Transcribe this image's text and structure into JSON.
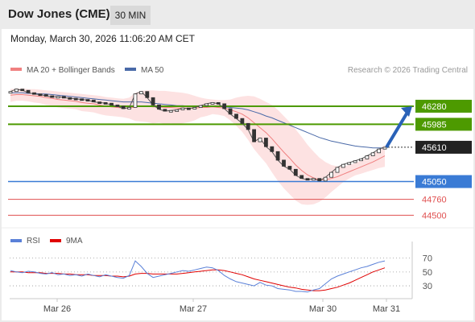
{
  "header": {
    "title": "Dow Jones (CME)",
    "timeframe": "30 MIN"
  },
  "timestamp": "Monday, March 30, 2026 11:06:20 AM CET",
  "legend": {
    "ma20_bb": "MA 20 + Bollinger Bands",
    "ma50": "MA 50",
    "credit": "Research © 2026 Trading Central"
  },
  "colors": {
    "resistance": "#4d9a00",
    "support": "#3a7bd5",
    "extra_support": "#e05050",
    "last_price": "#222222",
    "target_arrow": "#2a62b8",
    "ma20_bb": "#f08080",
    "bb_fill": "#fde2e2",
    "ma50": "#4a6aa8",
    "rsi": "#5a80d8",
    "rsi_ma": "#e00000"
  },
  "chart_data": [
    {
      "type": "line",
      "name": "price",
      "x": [
        "Mar 26",
        "Mar 27",
        "Mar 30",
        "Mar 31"
      ],
      "ylim": [
        44400,
        46700
      ],
      "levels": [
        {
          "value": 46280,
          "label": "46280",
          "kind": "resistance"
        },
        {
          "value": 45985,
          "label": "45985",
          "kind": "resistance"
        },
        {
          "value": 45610,
          "label": "45610",
          "kind": "last"
        },
        {
          "value": 45050,
          "label": "45050",
          "kind": "support"
        },
        {
          "value": 44760,
          "label": "44760",
          "kind": "extra_support"
        },
        {
          "value": 44500,
          "label": "44500",
          "kind": "extra_support"
        }
      ],
      "close_series": [
        46520,
        46560,
        46540,
        46500,
        46480,
        46470,
        46450,
        46430,
        46440,
        46420,
        46410,
        46400,
        46390,
        46380,
        46350,
        46340,
        46330,
        46300,
        46280,
        46240,
        46260,
        46480,
        46520,
        46420,
        46300,
        46230,
        46200,
        46210,
        46220,
        46250,
        46240,
        46260,
        46290,
        46320,
        46340,
        46320,
        46240,
        46150,
        46080,
        46000,
        45900,
        45700,
        45760,
        45620,
        45540,
        45400,
        45300,
        45250,
        45150,
        45100,
        45080,
        45100,
        45060,
        45120,
        45200,
        45280,
        45330,
        45360,
        45390,
        45420,
        45470,
        45520,
        45580,
        45610
      ],
      "ma20_series": [
        46460,
        46470,
        46470,
        46460,
        46450,
        46440,
        46420,
        46410,
        46390,
        46380,
        46370,
        46360,
        46340,
        46330,
        46320,
        46300,
        46280,
        46270,
        46260,
        46250,
        46250,
        46270,
        46280,
        46280,
        46270,
        46270,
        46260,
        46260,
        46250,
        46250,
        46250,
        46250,
        46260,
        46260,
        46270,
        46260,
        46250,
        46220,
        46190,
        46150,
        46090,
        46010,
        45930,
        45850,
        45750,
        45640,
        45530,
        45430,
        45320,
        45230,
        45160,
        45110,
        45080,
        45080,
        45100,
        45130,
        45170,
        45210,
        45250,
        45290,
        45330,
        45370,
        45420,
        45470
      ],
      "bb_upper": [
        46560,
        46570,
        46570,
        46560,
        46560,
        46550,
        46540,
        46530,
        46520,
        46510,
        46500,
        46490,
        46480,
        46470,
        46460,
        46450,
        46430,
        46420,
        46410,
        46400,
        46420,
        46500,
        46530,
        46540,
        46540,
        46530,
        46530,
        46520,
        46510,
        46500,
        46480,
        46450,
        46420,
        46400,
        46390,
        46380,
        46380,
        46390,
        46420,
        46440,
        46450,
        46440,
        46400,
        46350,
        46300,
        46220,
        46120,
        46020,
        45900,
        45780,
        45650,
        45540,
        45440,
        45370,
        45320,
        45300,
        45300,
        45320,
        45350,
        45400,
        45450,
        45500,
        45570,
        45650
      ],
      "bb_lower": [
        46350,
        46370,
        46370,
        46360,
        46340,
        46330,
        46300,
        46290,
        46260,
        46250,
        46240,
        46230,
        46200,
        46190,
        46180,
        46150,
        46130,
        46120,
        46110,
        46100,
        46080,
        46040,
        46030,
        46020,
        46000,
        46010,
        45990,
        46000,
        45990,
        46000,
        46020,
        46050,
        46100,
        46120,
        46150,
        46140,
        46120,
        46050,
        45960,
        45860,
        45730,
        45580,
        45460,
        45350,
        45200,
        45060,
        44940,
        44840,
        44740,
        44680,
        44670,
        44680,
        44720,
        44790,
        44880,
        44960,
        45040,
        45100,
        45150,
        45180,
        45210,
        45240,
        45270,
        45290
      ],
      "ma50_series": [
        46500,
        46500,
        46500,
        46490,
        46490,
        46480,
        46480,
        46470,
        46460,
        46450,
        46440,
        46430,
        46420,
        46410,
        46400,
        46390,
        46380,
        46370,
        46360,
        46350,
        46350,
        46350,
        46350,
        46340,
        46330,
        46320,
        46310,
        46300,
        46290,
        46290,
        46280,
        46280,
        46280,
        46280,
        46280,
        46280,
        46270,
        46260,
        46250,
        46240,
        46220,
        46190,
        46160,
        46120,
        46090,
        46050,
        46010,
        45970,
        45930,
        45890,
        45850,
        45810,
        45770,
        45740,
        45710,
        45690,
        45670,
        45650,
        45630,
        45620,
        45610,
        45600,
        45600,
        45600
      ]
    },
    {
      "type": "line",
      "name": "rsi",
      "series_labels": [
        "RSI",
        "9MA"
      ],
      "ylim": [
        15,
        80
      ],
      "ticks": [
        "70",
        "50",
        "30"
      ],
      "rsi_series": [
        52,
        50,
        49,
        51,
        50,
        48,
        47,
        49,
        46,
        47,
        45,
        46,
        44,
        47,
        45,
        43,
        46,
        44,
        42,
        41,
        45,
        66,
        58,
        48,
        42,
        44,
        46,
        48,
        50,
        52,
        51,
        53,
        55,
        57,
        56,
        52,
        45,
        40,
        36,
        34,
        32,
        30,
        35,
        31,
        30,
        26,
        25,
        24,
        22,
        22,
        21,
        24,
        26,
        33,
        40,
        44,
        47,
        50,
        53,
        56,
        58,
        61,
        64,
        66
      ],
      "rsi_ma_series": [
        50,
        50,
        50,
        49,
        49,
        49,
        48,
        48,
        48,
        47,
        47,
        46,
        46,
        46,
        45,
        45,
        45,
        44,
        44,
        43,
        44,
        47,
        48,
        48,
        47,
        47,
        47,
        47,
        47,
        48,
        49,
        50,
        51,
        52,
        53,
        53,
        52,
        50,
        48,
        46,
        43,
        40,
        38,
        36,
        34,
        32,
        30,
        28,
        27,
        25,
        24,
        23,
        23,
        24,
        26,
        28,
        31,
        34,
        38,
        42,
        46,
        50,
        53,
        56
      ]
    }
  ]
}
